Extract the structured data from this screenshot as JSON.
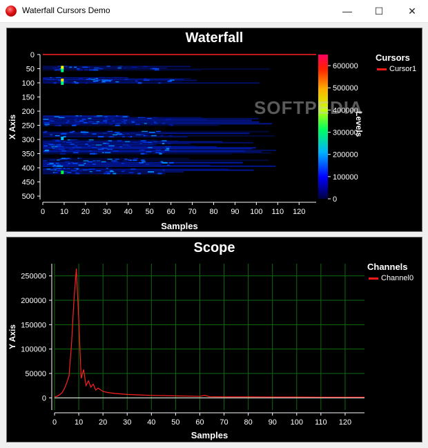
{
  "window": {
    "title": "Waterfall Cursors Demo",
    "minimize": "—",
    "maximize": "☐",
    "close": "✕"
  },
  "waterfall": {
    "title": "Waterfall",
    "x_label": "Samples",
    "y_label": "X Axis",
    "x_ticks": [
      "0",
      "10",
      "20",
      "30",
      "40",
      "50",
      "60",
      "70",
      "80",
      "90",
      "100",
      "110",
      "120"
    ],
    "y_ticks": [
      "0",
      "50",
      "100",
      "150",
      "200",
      "250",
      "300",
      "350",
      "400",
      "450",
      "500"
    ],
    "levels_label": "Levels",
    "levels_ticks": [
      "0",
      "100000",
      "200000",
      "300000",
      "400000",
      "500000",
      "600000"
    ],
    "legend_title": "Cursors",
    "legend_item": "Cursor1",
    "watermark": "SOFTPEDIA"
  },
  "scope": {
    "title": "Scope",
    "x_label": "Samples",
    "y_label": "Y Axis",
    "x_ticks": [
      "0",
      "10",
      "20",
      "30",
      "40",
      "50",
      "60",
      "70",
      "80",
      "90",
      "100",
      "110",
      "120"
    ],
    "y_ticks": [
      "0",
      "50000",
      "100000",
      "150000",
      "200000",
      "250000"
    ],
    "legend_title": "Channels",
    "legend_item": "Channel0"
  },
  "chart_data": [
    {
      "type": "heatmap",
      "title": "Waterfall",
      "xlabel": "Samples",
      "ylabel": "X Axis",
      "xlim": [
        0,
        128
      ],
      "ylim": [
        0,
        512
      ],
      "colorbar_label": "Levels",
      "colorbar_range": [
        0,
        650000
      ],
      "cursor": {
        "name": "Cursor1",
        "y": 0
      }
    },
    {
      "type": "line",
      "title": "Scope",
      "xlabel": "Samples",
      "ylabel": "Y Axis",
      "xlim": [
        0,
        128
      ],
      "ylim": [
        -25000,
        275000
      ],
      "grid": true,
      "legend": "top-right",
      "series": [
        {
          "name": "Channel0",
          "x": [
            0,
            1,
            2,
            3,
            4,
            5,
            6,
            7,
            8,
            9,
            10,
            11,
            12,
            13,
            14,
            15,
            16,
            17,
            18,
            20,
            22,
            25,
            30,
            35,
            40,
            50,
            60,
            62,
            64,
            70,
            80,
            90,
            100,
            110,
            120,
            128
          ],
          "y": [
            2000,
            3000,
            6000,
            10000,
            18000,
            30000,
            45000,
            110000,
            200000,
            265000,
            160000,
            40000,
            58000,
            25000,
            35000,
            22000,
            28000,
            16000,
            20000,
            13000,
            11000,
            9000,
            7000,
            6000,
            5000,
            4000,
            3000,
            5000,
            2500,
            2000,
            2000,
            1800,
            1800,
            1500,
            1500,
            1500
          ]
        }
      ]
    }
  ]
}
